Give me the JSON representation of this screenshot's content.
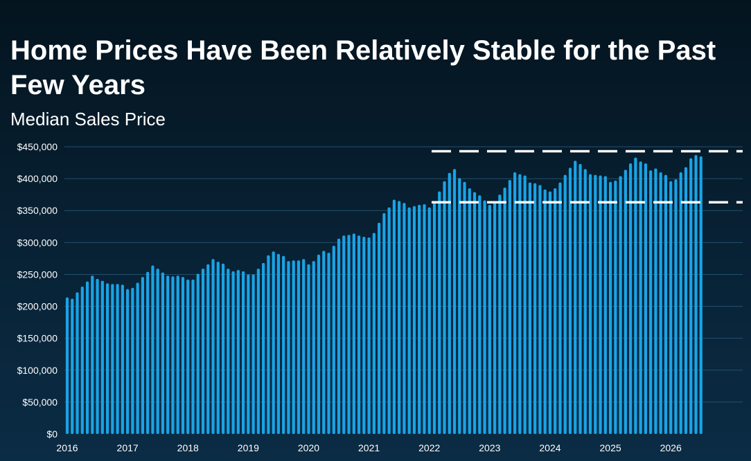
{
  "header": {
    "title": "Home Prices Have Been Relatively Stable for the Past Few Years",
    "subtitle": "Median Sales Price"
  },
  "colors": {
    "bar": "#1aa3e5",
    "gridline": "#24506e",
    "reference_line": "#ffffff"
  },
  "chart_data": {
    "type": "bar",
    "title": "Home Prices Have Been Relatively Stable for the Past Few Years",
    "subtitle": "Median Sales Price",
    "xlabel": "",
    "ylabel": "",
    "ylim": [
      0,
      450000
    ],
    "yticks": [
      0,
      50000,
      100000,
      150000,
      200000,
      250000,
      300000,
      350000,
      400000,
      450000
    ],
    "ytick_labels": [
      "$0",
      "$50,000",
      "$100,000",
      "$150,000",
      "$200,000",
      "$250,000",
      "$300,000",
      "$350,000",
      "$400,000",
      "$450,000"
    ],
    "xtick_labels": [
      "2016",
      "2017",
      "2018",
      "2019",
      "2020",
      "2021",
      "2022",
      "2023",
      "2024",
      "2025",
      "2026"
    ],
    "bars_per_year": 12,
    "grid": "horizontal",
    "legend": "none",
    "values": [
      214000,
      212000,
      222000,
      231000,
      239000,
      248000,
      243000,
      240000,
      236000,
      235000,
      235000,
      234000,
      227000,
      229000,
      237000,
      246000,
      254000,
      264000,
      259000,
      253000,
      248000,
      247000,
      248000,
      246000,
      242000,
      242000,
      251000,
      259000,
      266000,
      274000,
      270000,
      267000,
      259000,
      255000,
      257000,
      255000,
      250000,
      250000,
      259000,
      268000,
      280000,
      286000,
      282000,
      279000,
      271000,
      272000,
      272000,
      274000,
      266000,
      271000,
      281000,
      287000,
      284000,
      295000,
      306000,
      311000,
      312000,
      314000,
      311000,
      309000,
      308000,
      315000,
      331000,
      346000,
      355000,
      367000,
      365000,
      362000,
      355000,
      357000,
      359000,
      360000,
      355000,
      364000,
      380000,
      396000,
      409000,
      415000,
      401000,
      395000,
      385000,
      379000,
      374000,
      366000,
      359000,
      363000,
      375000,
      386000,
      398000,
      410000,
      407000,
      405000,
      394000,
      393000,
      390000,
      383000,
      380000,
      385000,
      394000,
      406000,
      417000,
      428000,
      423000,
      415000,
      407000,
      406000,
      405000,
      404000,
      395000,
      397000,
      404000,
      414000,
      424000,
      433000,
      427000,
      424000,
      413000,
      416000,
      410000,
      406000,
      396000,
      399000,
      410000,
      418000,
      432000,
      437000,
      435000
    ],
    "reference_lines": [
      {
        "y": 443000,
        "start_index": 73,
        "style": "dashed"
      },
      {
        "y": 363000,
        "start_index": 73,
        "style": "dashed"
      }
    ]
  }
}
